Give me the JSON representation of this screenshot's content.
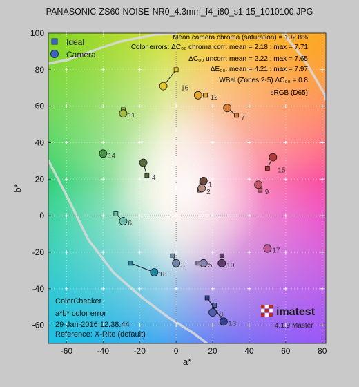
{
  "title": "PANASONIC-ZS60-NOISE-NR0_4.3mm_f4_i80_s1-15_1010100.JPG",
  "chart_data": {
    "type": "scatter",
    "xlabel": "a*",
    "ylabel": "b*",
    "xlim": [
      -70,
      82
    ],
    "ylim": [
      -70,
      100
    ],
    "xticks": [
      -60,
      -40,
      -20,
      0,
      20,
      40,
      60,
      80
    ],
    "yticks": [
      -60,
      -40,
      -20,
      0,
      20,
      40,
      60,
      80,
      100
    ],
    "grid": true,
    "legend": {
      "placement": "top-left",
      "entries": [
        "Ideal",
        "Camera"
      ]
    },
    "annotations": [
      "Mean camera chroma (saturation) = 102.8%",
      "Color errors:  ΔC₀₀ chroma corr: mean = 2.18 ; max = 7.71",
      "ΔC₀₀ uncorr: mean = 2.22 ; max = 7.65",
      "ΔE₀₀: mean = 4.21 ; max = 7.97",
      "WBal (Zones 2-5)   ΔC₀₀ = 0.8",
      "sRGB (D65)"
    ],
    "info_box": [
      "ColorChecker",
      "a*b* color error",
      "29-Jan-2016 12:38:44",
      "Reference: X-Rite (default)"
    ],
    "logo": "imatest",
    "version": "4.1.9 Master",
    "patches": [
      {
        "id": 1,
        "ideal": [
          14,
          18
        ],
        "camera": [
          15,
          19
        ],
        "color": "#6e4a3c"
      },
      {
        "id": 2,
        "ideal": [
          13,
          14
        ],
        "camera": [
          14,
          15
        ],
        "color": "#b98d80"
      },
      {
        "id": 3,
        "ideal": [
          -2,
          -22
        ],
        "camera": [
          0,
          -26
        ],
        "color": "#6e87a8"
      },
      {
        "id": 4,
        "ideal": [
          -16,
          22
        ],
        "camera": [
          -18,
          29
        ],
        "color": "#566a3c"
      },
      {
        "id": 5,
        "ideal": [
          12,
          -26
        ],
        "camera": [
          15,
          -26
        ],
        "color": "#8985ae"
      },
      {
        "id": 6,
        "ideal": [
          -33,
          1
        ],
        "camera": [
          -29,
          -3
        ],
        "color": "#6ac0ad"
      },
      {
        "id": 7,
        "ideal": [
          33,
          55
        ],
        "camera": [
          28,
          59
        ],
        "color": "#d87f33"
      },
      {
        "id": 8,
        "ideal": [
          21,
          -49
        ],
        "camera": [
          20,
          -53
        ],
        "color": "#4e60a8"
      },
      {
        "id": 9,
        "ideal": [
          46,
          14
        ],
        "camera": [
          45,
          17
        ],
        "color": "#c45562"
      },
      {
        "id": 10,
        "ideal": [
          25,
          -22
        ],
        "camera": [
          25,
          -26
        ],
        "color": "#5e3b6a"
      },
      {
        "id": 11,
        "ideal": [
          -29,
          58
        ],
        "camera": [
          -29,
          56
        ],
        "color": "#a3b93f"
      },
      {
        "id": 12,
        "ideal": [
          16,
          66
        ],
        "camera": [
          12,
          66
        ],
        "color": "#e4a32a"
      },
      {
        "id": 13,
        "ideal": [
          17,
          -45
        ],
        "camera": [
          26,
          -58
        ],
        "color": "#344193"
      },
      {
        "id": 14,
        "ideal": [
          -40,
          34
        ],
        "camera": [
          -40,
          34
        ],
        "color": "#479648"
      },
      {
        "id": 15,
        "ideal": [
          50,
          26
        ],
        "camera": [
          53,
          32
        ],
        "color": "#b03a36"
      },
      {
        "id": 16,
        "ideal": [
          0,
          80
        ],
        "camera": [
          -7,
          71
        ],
        "color": "#e3c62c"
      },
      {
        "id": 17,
        "ideal": [
          50,
          -17
        ],
        "camera": [
          50,
          -18
        ],
        "color": "#c05698"
      },
      {
        "id": 18,
        "ideal": [
          -25,
          -26
        ],
        "camera": [
          -12,
          -31
        ],
        "color": "#1d87a4"
      }
    ]
  }
}
